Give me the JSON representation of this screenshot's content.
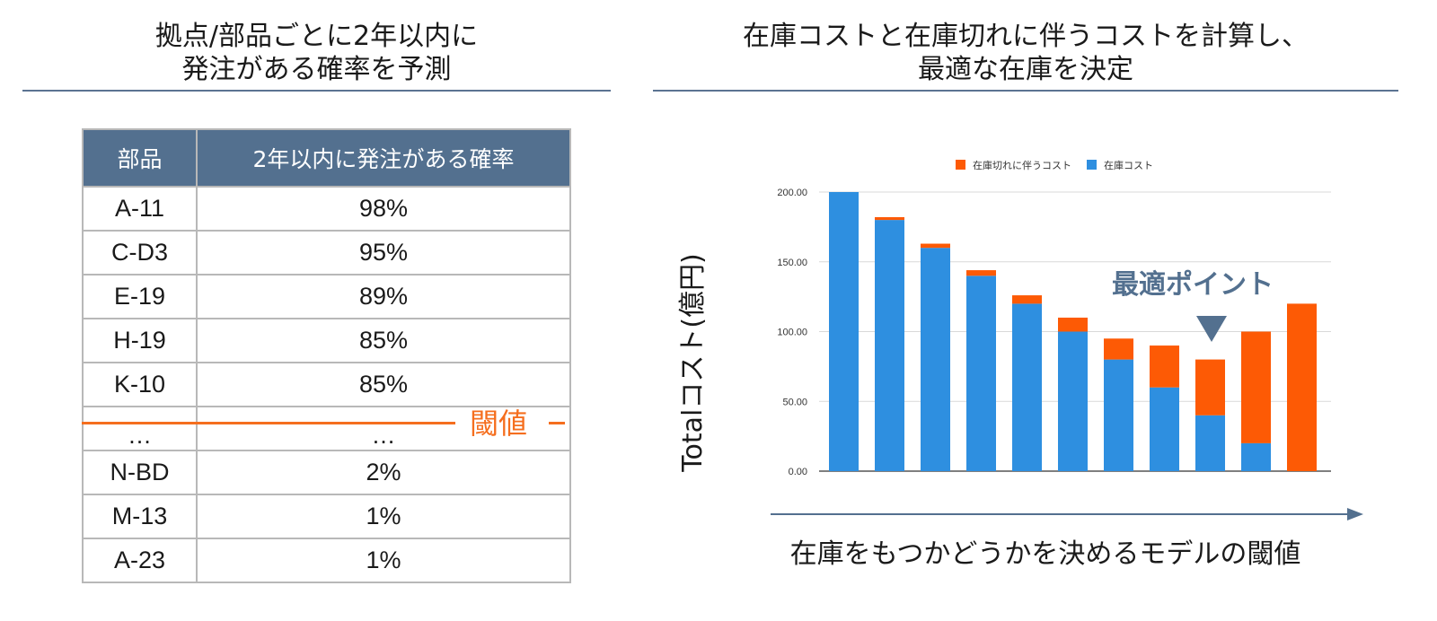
{
  "left_heading": {
    "line1": "拠点/部品ごとに2年以内に",
    "line2": "発注がある確率を予測"
  },
  "right_heading": {
    "line1": "在庫コストと在庫切れに伴うコストを計算し、",
    "line2": "最適な在庫を決定"
  },
  "table": {
    "headers": [
      "部品",
      "2年以内に発注がある確率"
    ],
    "rows": [
      [
        "A-11",
        "98%"
      ],
      [
        "C-D3",
        "95%"
      ],
      [
        "E-19",
        "89%"
      ],
      [
        "H-19",
        "85%"
      ],
      [
        "K-10",
        "85%"
      ],
      [
        "…",
        "…"
      ],
      [
        "N-BD",
        "2%"
      ],
      [
        "M-13",
        "1%"
      ],
      [
        "A-23",
        "1%"
      ]
    ],
    "threshold_label": "閾値"
  },
  "chart_data": {
    "type": "bar",
    "stacked": true,
    "legend": [
      "在庫切れに伴うコスト",
      "在庫コスト"
    ],
    "legend_position": "top",
    "ylabel": "Totalコスト(億円)",
    "xlabel": "在庫をもつかどうかを決めるモデルの閾値",
    "ylim": [
      0,
      200
    ],
    "yticks": [
      "0.00",
      "50.00",
      "100.00",
      "150.00",
      "200.00"
    ],
    "grid": true,
    "series": [
      {
        "name": "在庫コスト",
        "color": "#2e8fe0",
        "values": [
          200,
          180,
          160,
          140,
          120,
          100,
          80,
          60,
          40,
          20,
          0
        ]
      },
      {
        "name": "在庫切れに伴うコスト",
        "color": "#fd5a05",
        "values": [
          0,
          2,
          3,
          4,
          6,
          10,
          15,
          30,
          40,
          80,
          120
        ]
      }
    ],
    "annotation": "最適ポイント",
    "annotation_index": 8
  },
  "colors": {
    "header": "#53708f",
    "threshold": "#f56e1e",
    "stock": "#2e8fe0",
    "stockout": "#fd5a05"
  }
}
